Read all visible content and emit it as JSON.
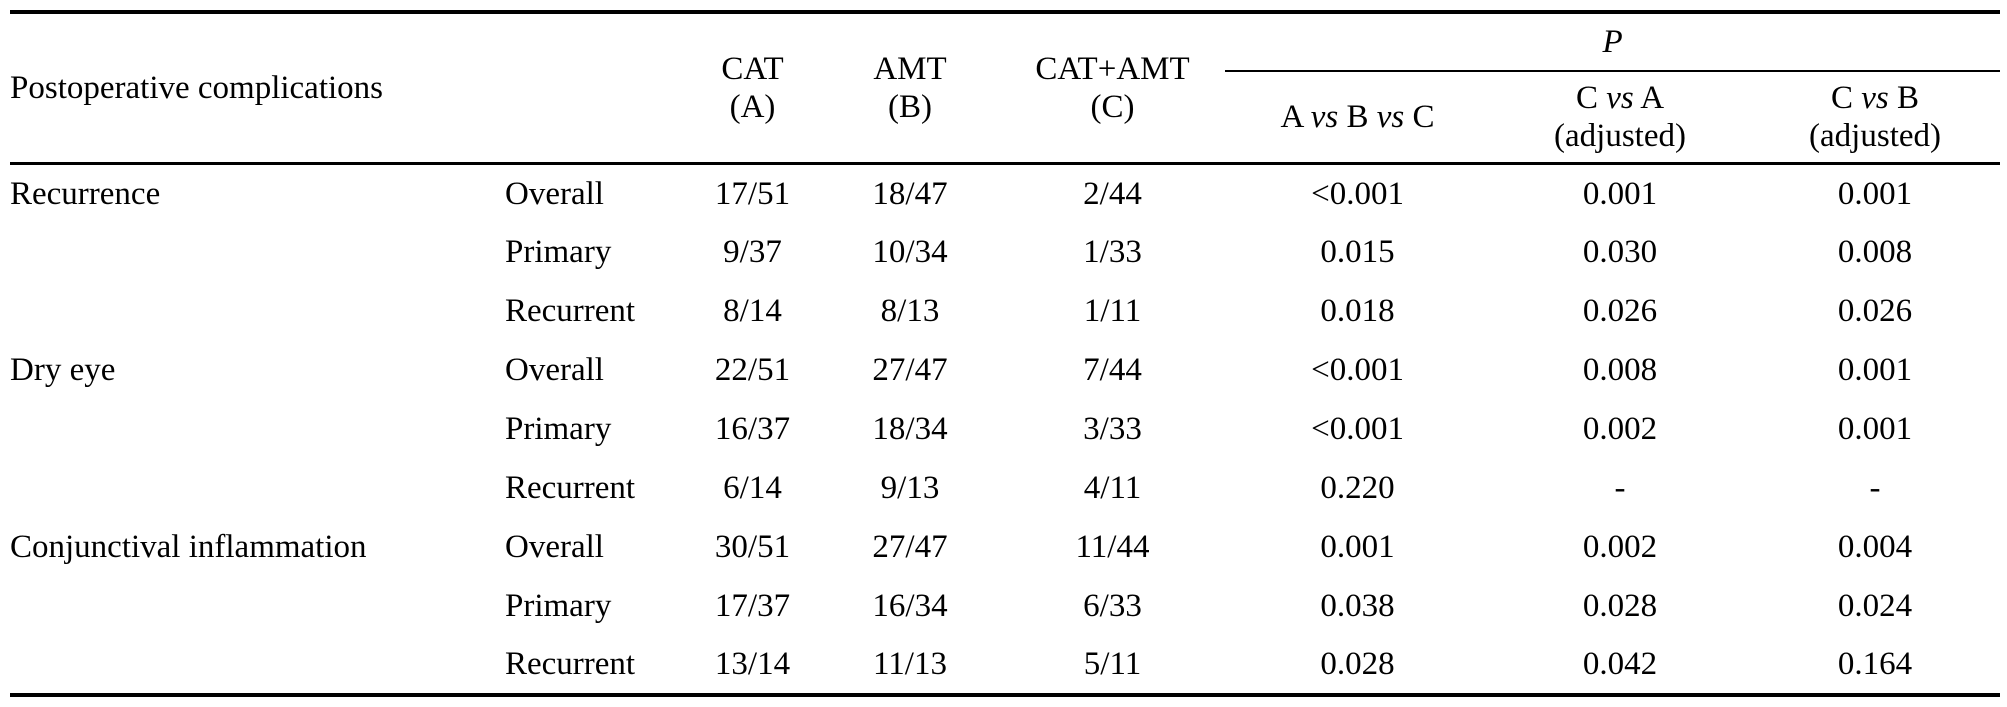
{
  "header": {
    "first_col": "Postoperative complications",
    "cat_line1": "CAT",
    "cat_line2": "(A)",
    "amt_line1": "AMT",
    "amt_line2": "(B)",
    "catamt_line1": "CAT+AMT",
    "catamt_line2": "(C)",
    "p_label": "P",
    "pcol1": [
      "A ",
      "vs",
      " B ",
      "vs",
      " C"
    ],
    "pcol2_line1": [
      "C ",
      "vs",
      " A"
    ],
    "pcol2_line2": "(adjusted)",
    "pcol3_line1": [
      "C ",
      "vs",
      " B"
    ],
    "pcol3_line2": "(adjusted)"
  },
  "rows": [
    {
      "group": "Recurrence",
      "sub": "Overall",
      "a": "17/51",
      "b": "18/47",
      "c": "2/44",
      "p_abc": "<0.001",
      "p_ca": "0.001",
      "p_cb": "0.001"
    },
    {
      "group": "",
      "sub": "Primary",
      "a": "9/37",
      "b": "10/34",
      "c": "1/33",
      "p_abc": "0.015",
      "p_ca": "0.030",
      "p_cb": "0.008"
    },
    {
      "group": "",
      "sub": "Recurrent",
      "a": "8/14",
      "b": "8/13",
      "c": "1/11",
      "p_abc": "0.018",
      "p_ca": "0.026",
      "p_cb": "0.026"
    },
    {
      "group": "Dry eye",
      "sub": "Overall",
      "a": "22/51",
      "b": "27/47",
      "c": "7/44",
      "p_abc": "<0.001",
      "p_ca": "0.008",
      "p_cb": "0.001"
    },
    {
      "group": "",
      "sub": "Primary",
      "a": "16/37",
      "b": "18/34",
      "c": "3/33",
      "p_abc": "<0.001",
      "p_ca": "0.002",
      "p_cb": "0.001"
    },
    {
      "group": "",
      "sub": "Recurrent",
      "a": "6/14",
      "b": "9/13",
      "c": "4/11",
      "p_abc": "0.220",
      "p_ca": "-",
      "p_cb": "-"
    },
    {
      "group": "Conjunctival inflammation",
      "sub": "Overall",
      "a": "30/51",
      "b": "27/47",
      "c": "11/44",
      "p_abc": "0.001",
      "p_ca": "0.002",
      "p_cb": "0.004"
    },
    {
      "group": "",
      "sub": "Primary",
      "a": "17/37",
      "b": "16/34",
      "c": "6/33",
      "p_abc": "0.038",
      "p_ca": "0.028",
      "p_cb": "0.024"
    },
    {
      "group": "",
      "sub": "Recurrent",
      "a": "13/14",
      "b": "11/13",
      "c": "5/11",
      "p_abc": "0.028",
      "p_ca": "0.042",
      "p_cb": "0.164"
    }
  ]
}
